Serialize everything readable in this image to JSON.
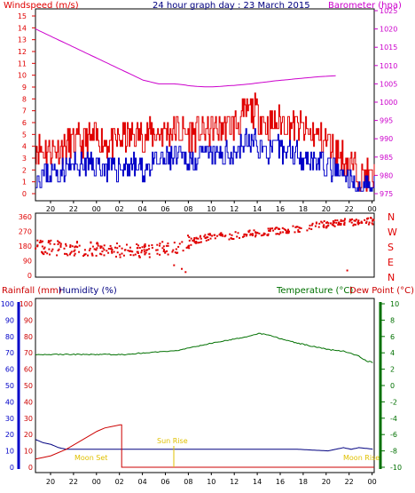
{
  "colors": {
    "wind": "#e00000",
    "gust_line": "#e00000",
    "wind_avg": "#0000c8",
    "baro": "#cc00cc",
    "direction": "#e00000",
    "rain": "#cc0000",
    "humidity": "#000080",
    "temperature": "#007000",
    "dewpoint": "#cc0000",
    "moon": "#e0c000",
    "frame": "#000000"
  },
  "header": {
    "wind_label": "Windspeed (m/s)",
    "title": "24 hour graph day : 23 March 2015",
    "baro_label": "Barometer (hpa)"
  },
  "direction_letters": [
    "N",
    "W",
    "S",
    "E",
    "N"
  ],
  "lower_header": {
    "rain_label": "Rainfall (mm)",
    "humidity_label": "Humidity (%)",
    "temp_label": "Temperature (°C)",
    "dew_label": "Dew Point (°C)"
  },
  "annotations": {
    "moon_set": "Moon Set",
    "sun_rise": "Sun Rise",
    "moon_rise": "Moon Rise"
  },
  "chart_data": [
    {
      "type": "line",
      "name": "wind-baro",
      "x_hours": [
        20,
        22,
        0,
        2,
        4,
        6,
        8,
        10,
        12,
        14,
        16,
        18,
        20,
        22,
        0
      ],
      "x_labels": [
        "20",
        "22",
        "00",
        "02",
        "04",
        "06",
        "08",
        "10",
        "12",
        "14",
        "16",
        "18",
        "20",
        "22",
        "00"
      ],
      "wind_ylim": [
        0,
        15
      ],
      "wind_ticks": [
        0,
        1,
        2,
        3,
        4,
        5,
        6,
        7,
        8,
        9,
        10,
        11,
        12,
        13,
        14,
        15
      ],
      "baro_ylim": [
        975,
        1025
      ],
      "baro_ticks": [
        975,
        980,
        985,
        990,
        995,
        1000,
        1005,
        1010,
        1015,
        1020,
        1025
      ],
      "gust_profile": [
        [
          0,
          4
        ],
        [
          2,
          3.6
        ],
        [
          4,
          4.2
        ],
        [
          6,
          4.4
        ],
        [
          8,
          4.6
        ],
        [
          10,
          4.2
        ],
        [
          12,
          4.8
        ],
        [
          14,
          5
        ],
        [
          16,
          5.2
        ],
        [
          18,
          5.4
        ],
        [
          20,
          5
        ],
        [
          22,
          5.3
        ],
        [
          24,
          5.6
        ],
        [
          26,
          5.8
        ],
        [
          27,
          6.5
        ],
        [
          28,
          7.2
        ],
        [
          29,
          6.6
        ],
        [
          30,
          5.8
        ],
        [
          32,
          6
        ],
        [
          34,
          5.6
        ],
        [
          36,
          5
        ],
        [
          38,
          4.4
        ],
        [
          40,
          3
        ],
        [
          42,
          1.6
        ],
        [
          44,
          1.2
        ]
      ],
      "avg_profile": [
        [
          0,
          1.6
        ],
        [
          2,
          1.8
        ],
        [
          4,
          2.2
        ],
        [
          6,
          2.4
        ],
        [
          8,
          2.5
        ],
        [
          10,
          2
        ],
        [
          12,
          2.5
        ],
        [
          14,
          2
        ],
        [
          16,
          2.6
        ],
        [
          18,
          3
        ],
        [
          20,
          2.8
        ],
        [
          22,
          3.1
        ],
        [
          24,
          3.2
        ],
        [
          26,
          3.6
        ],
        [
          27,
          4.2
        ],
        [
          28,
          4.6
        ],
        [
          29,
          4
        ],
        [
          30,
          3.6
        ],
        [
          32,
          3.8
        ],
        [
          34,
          3.4
        ],
        [
          36,
          3
        ],
        [
          38,
          2.3
        ],
        [
          40,
          1.3
        ],
        [
          42,
          0.6
        ],
        [
          44,
          0.8
        ]
      ],
      "baro_profile": [
        [
          0,
          1020
        ],
        [
          1,
          1019
        ],
        [
          2,
          1018
        ],
        [
          3,
          1017
        ],
        [
          4,
          1016
        ],
        [
          5,
          1015
        ],
        [
          6,
          1014
        ],
        [
          7,
          1013
        ],
        [
          8,
          1012
        ],
        [
          9,
          1011
        ],
        [
          10,
          1010
        ],
        [
          11,
          1009
        ],
        [
          12,
          1008
        ],
        [
          13,
          1007
        ],
        [
          14,
          1006
        ],
        [
          15,
          1005.5
        ],
        [
          16,
          1005
        ],
        [
          17,
          1005
        ],
        [
          18,
          1005
        ],
        [
          19,
          1004.8
        ],
        [
          20,
          1004.5
        ],
        [
          21,
          1004.3
        ],
        [
          22,
          1004.2
        ],
        [
          23,
          1004.2
        ],
        [
          24,
          1004.3
        ],
        [
          25,
          1004.5
        ],
        [
          26,
          1004.6
        ],
        [
          27,
          1004.8
        ],
        [
          28,
          1005
        ],
        [
          29,
          1005.3
        ],
        [
          30,
          1005.5
        ],
        [
          31,
          1005.8
        ],
        [
          32,
          1006
        ],
        [
          33,
          1006.2
        ],
        [
          34,
          1006.4
        ],
        [
          35,
          1006.6
        ],
        [
          36,
          1006.8
        ],
        [
          37,
          1007
        ],
        [
          38,
          1007.1
        ],
        [
          39,
          1007.2
        ]
      ]
    },
    {
      "type": "scatter",
      "name": "wind-direction",
      "x_labels": [
        "20",
        "22",
        "00",
        "02",
        "04",
        "06",
        "08",
        "10",
        "12",
        "14",
        "16",
        "18",
        "20",
        "22",
        "00"
      ],
      "ylim": [
        0,
        360
      ],
      "y_ticks": [
        0,
        90,
        180,
        270,
        360
      ],
      "direction_profile": [
        [
          0,
          175
        ],
        [
          4,
          165
        ],
        [
          8,
          160
        ],
        [
          10,
          155
        ],
        [
          12,
          150
        ],
        [
          14,
          150
        ],
        [
          16,
          160
        ],
        [
          18,
          175
        ],
        [
          20,
          205
        ],
        [
          22,
          230
        ],
        [
          24,
          240
        ],
        [
          26,
          245
        ],
        [
          28,
          255
        ],
        [
          30,
          265
        ],
        [
          32,
          275
        ],
        [
          34,
          285
        ],
        [
          36,
          300
        ],
        [
          38,
          315
        ],
        [
          40,
          325
        ],
        [
          42,
          330
        ],
        [
          44,
          335
        ]
      ],
      "outliers": [
        [
          18,
          62
        ],
        [
          19,
          40
        ],
        [
          19.5,
          20
        ],
        [
          40.5,
          30
        ]
      ]
    },
    {
      "type": "line",
      "name": "rain-humidity-temperature",
      "x_labels": [
        "20",
        "22",
        "00",
        "02",
        "04",
        "06",
        "08",
        "10",
        "12",
        "14",
        "16",
        "18",
        "20",
        "22",
        "00"
      ],
      "pct_ylim": [
        0,
        100
      ],
      "pct_ticks": [
        0,
        10,
        20,
        30,
        40,
        50,
        60,
        70,
        80,
        90,
        100
      ],
      "temp_ylim": [
        -10,
        10
      ],
      "temp_ticks": [
        -10,
        -8,
        -6,
        -4,
        -2,
        0,
        2,
        4,
        6,
        8,
        10
      ],
      "temperature_profile": [
        [
          0,
          3.8
        ],
        [
          4,
          3.8
        ],
        [
          6,
          3.8
        ],
        [
          8,
          3.8
        ],
        [
          12,
          3.8
        ],
        [
          14,
          4
        ],
        [
          16,
          4.1
        ],
        [
          18,
          4.2
        ],
        [
          20,
          4.6
        ],
        [
          22,
          5
        ],
        [
          24,
          5.4
        ],
        [
          26,
          5.7
        ],
        [
          28,
          6.1
        ],
        [
          29,
          6.4
        ],
        [
          30,
          6.2
        ],
        [
          32,
          5.7
        ],
        [
          34,
          5.2
        ],
        [
          36,
          4.8
        ],
        [
          38,
          4.4
        ],
        [
          40,
          4.2
        ],
        [
          42,
          3.6
        ],
        [
          43,
          3
        ],
        [
          44,
          2.8
        ]
      ],
      "rain_profile": [
        [
          0,
          5
        ],
        [
          1,
          6
        ],
        [
          2,
          7
        ],
        [
          4,
          11
        ],
        [
          8,
          22
        ],
        [
          9,
          24
        ],
        [
          10,
          25
        ],
        [
          11,
          26
        ],
        [
          11.2,
          26
        ],
        [
          11.2,
          0
        ],
        [
          12,
          0
        ],
        [
          44,
          0
        ]
      ],
      "humidity_profile": [
        [
          0,
          17
        ],
        [
          1,
          15
        ],
        [
          2,
          14
        ],
        [
          3,
          12
        ],
        [
          4,
          11
        ],
        [
          6,
          11
        ],
        [
          8,
          11
        ],
        [
          10,
          11
        ],
        [
          12,
          11
        ],
        [
          20,
          11
        ],
        [
          30,
          11
        ],
        [
          34,
          11
        ],
        [
          38,
          10
        ],
        [
          40,
          12
        ],
        [
          41,
          11
        ],
        [
          42,
          12
        ],
        [
          44,
          11
        ]
      ]
    }
  ]
}
